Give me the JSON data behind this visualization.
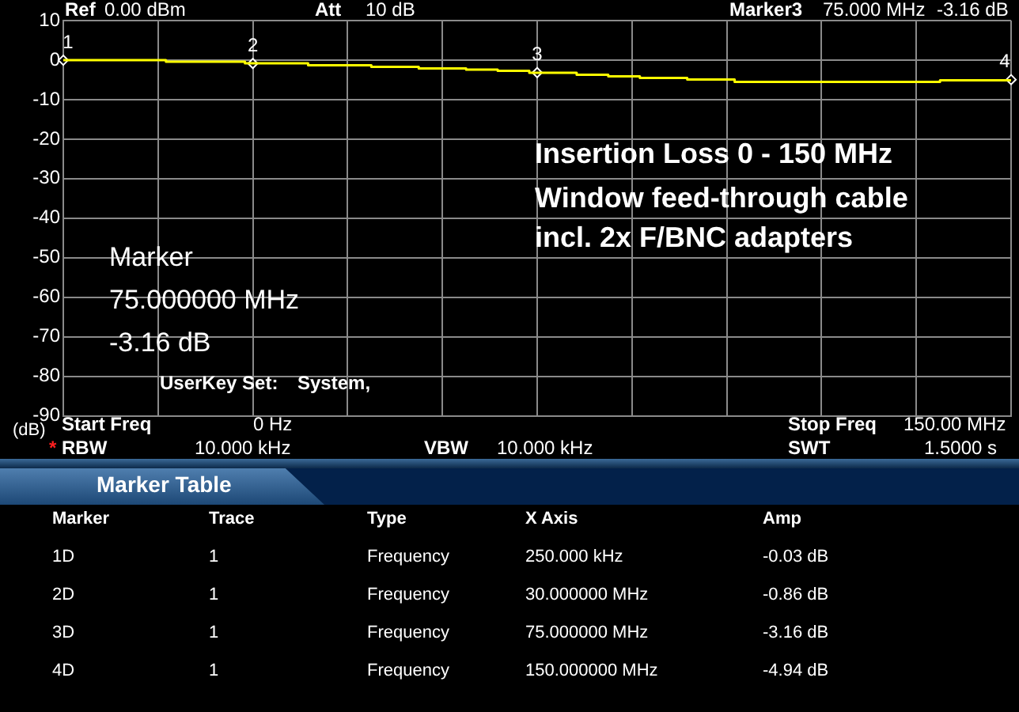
{
  "chart_data": {
    "type": "step",
    "title": "Insertion Loss 0 - 150 MHz",
    "subtitle": "Window feed-through cable\nincl. 2x F/BNC adapters",
    "ylabel": "(dB)",
    "categories": [
      null,
      null,
      null,
      null,
      null,
      null,
      null,
      null,
      null,
      null,
      null,
      null,
      null,
      null,
      null,
      null,
      null,
      null,
      null,
      null,
      null,
      null,
      null,
      null,
      null,
      null,
      null,
      null,
      null,
      null,
      null,
      null,
      null,
      null,
      null,
      null,
      null,
      null,
      null,
      null,
      null,
      null,
      null,
      null,
      null,
      null,
      null,
      null,
      null,
      null,
      null,
      null,
      null,
      null,
      null,
      null,
      null,
      null,
      null,
      null,
      null
    ],
    "ylim": [
      -90,
      10
    ],
    "yticks": [
      10,
      0,
      -10,
      -20,
      -30,
      -40,
      -50,
      -60,
      -70,
      -80,
      -90
    ],
    "grid": true,
    "legend": false,
    "line_style": "solid",
    "series": [
      {
        "color": "#ffff00",
        "values": [
          0,
          0,
          0,
          0,
          0,
          0,
          0,
          -0.4,
          -0.4,
          -0.4,
          -0.4,
          -0.4,
          -0.8,
          -0.8,
          -0.8,
          -0.8,
          -1.3,
          -1.3,
          -1.3,
          -1.3,
          -1.7,
          -1.7,
          -1.7,
          -2.1,
          -2.1,
          -2.1,
          -2.4,
          -2.4,
          -2.7,
          -2.7,
          -3.2,
          -3.2,
          -3.2,
          -3.7,
          -3.7,
          -4.1,
          -4.1,
          -4.5,
          -4.5,
          -4.5,
          -4.9,
          -4.9,
          -4.9,
          -5.5,
          -5.5,
          -5.5,
          -5.5,
          -5.5,
          -5.5,
          -5.5,
          -5.5,
          -5.5,
          -5.5,
          -5.5,
          -5.5,
          -5.5,
          -5.1,
          -5.1,
          -5.1,
          -5.1,
          -5.1
        ]
      },
      {
        "type": "scatter",
        "color": "#ffffff",
        "marker": "diamond",
        "values": [
          -0.03,
          null,
          null,
          null,
          null,
          null,
          null,
          null,
          null,
          null,
          null,
          null,
          -0.86,
          null,
          null,
          null,
          null,
          null,
          null,
          null,
          null,
          null,
          null,
          null,
          null,
          null,
          null,
          null,
          null,
          null,
          -3.16,
          null,
          null,
          null,
          null,
          null,
          null,
          null,
          null,
          null,
          null,
          null,
          null,
          null,
          null,
          null,
          null,
          null,
          null,
          null,
          null,
          null,
          null,
          null,
          null,
          null,
          null,
          null,
          null,
          null,
          -4.94
        ]
      }
    ],
    "annotations": [
      "Ref",
      "0.00 dBm",
      "Att",
      "10 dB",
      "Marker3",
      "75.000 MHz",
      "-3.16 dB",
      "Marker",
      "75.000000 MHz",
      "-3.16 dB",
      "UserKey Set:",
      "System,",
      "Start Freq",
      "0 Hz",
      "Stop Freq",
      "150.00 MHz",
      "*",
      "RBW",
      "10.000 kHz",
      "VBW",
      "10.000 kHz",
      "SWT",
      "1.5000 s",
      "Marker Table",
      "Marker",
      "Trace",
      "Type",
      "X Axis",
      "Amp",
      "1D",
      "1",
      "Frequency",
      "250.000 kHz",
      "-0.03 dB",
      "2D",
      "1",
      "Frequency",
      "30.000000 MHz",
      "-0.86 dB",
      "3D",
      "1",
      "Frequency",
      "75.000000 MHz",
      "-3.16 dB",
      "4D",
      "1",
      "Frequency",
      "150.000000 MHz",
      "-4.94 dB",
      "1",
      "2",
      "3",
      "4"
    ]
  }
}
